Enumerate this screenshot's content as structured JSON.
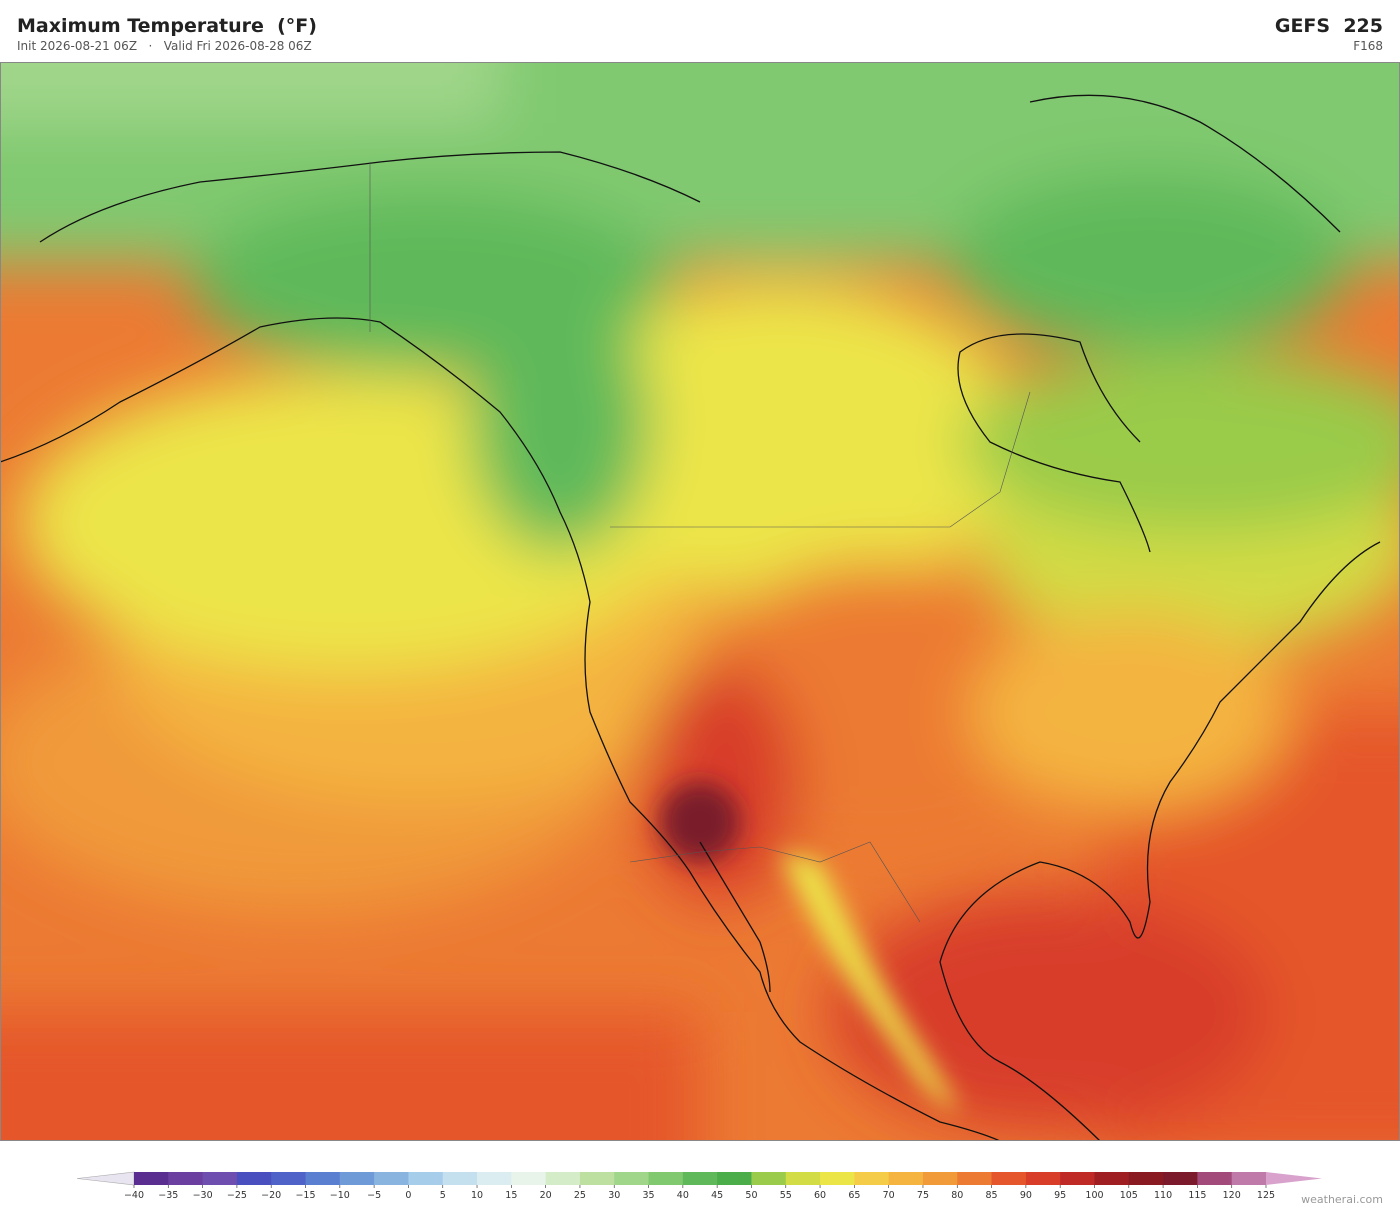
{
  "header": {
    "title": "Maximum Temperature  (°F)",
    "init": "Init 2026-08-21 06Z",
    "separator": "·",
    "valid": "Valid Fri 2026-08-28 06Z",
    "model": "GEFS  225",
    "forecast_hour": "F168"
  },
  "colorbar": {
    "ticks": [
      "−40",
      "−35",
      "−30",
      "−25",
      "−20",
      "−15",
      "−10",
      "−5",
      "0",
      "5",
      "10",
      "15",
      "20",
      "25",
      "30",
      "35",
      "40",
      "45",
      "50",
      "55",
      "60",
      "65",
      "70",
      "75",
      "80",
      "85",
      "90",
      "95",
      "100",
      "105",
      "110",
      "115",
      "120",
      "125"
    ],
    "under_color": "#e8e4f0",
    "colors": [
      "#5a2d91",
      "#6a3fa0",
      "#6e4fb0",
      "#4a4fc0",
      "#4f62c8",
      "#5a7fd0",
      "#6f9ad8",
      "#8ab4e0",
      "#a6cdea",
      "#c4e0ef",
      "#dcedf2",
      "#e8f4ea",
      "#d4ecc8",
      "#bde0a0",
      "#a0d68a",
      "#80c96f",
      "#5fb95a",
      "#4aad4a",
      "#9acb4a",
      "#d2dc44",
      "#ece548",
      "#f5cc48",
      "#f4b43f",
      "#f09a3a",
      "#ec7a33",
      "#e5562c",
      "#d83d2a",
      "#bf2a26",
      "#9e1e22",
      "#8a1a22",
      "#7a1a2a",
      "#a24a7a",
      "#c07aaa"
    ],
    "over_color": "#d8a2cc"
  },
  "footer": {
    "watermark": "weatherai.com"
  }
}
